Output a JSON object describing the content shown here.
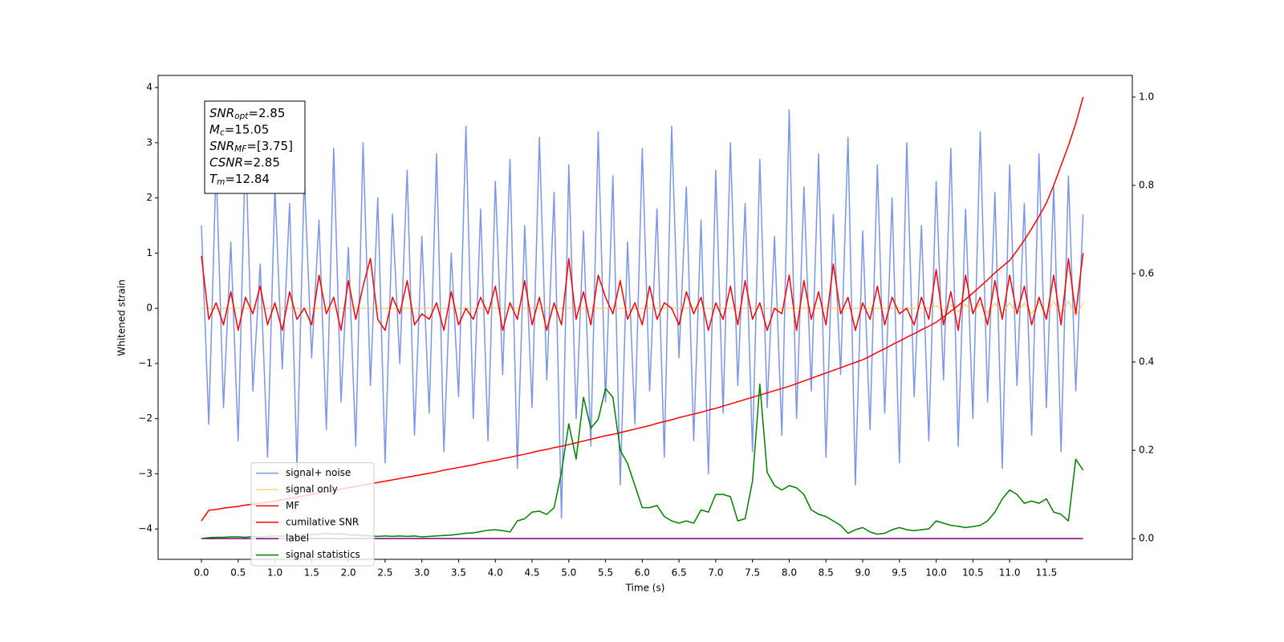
{
  "chart_data": {
    "type": "line",
    "xlabel": "Time (s)",
    "ylabel": "Whitened strain",
    "annotation": [
      {
        "base": "SNR",
        "sub": "opt",
        "rest": "=2.85"
      },
      {
        "base": "M",
        "sub": "c",
        "rest": "=15.05"
      },
      {
        "base": "SNR",
        "sub": "MF",
        "rest": "=[3.75]"
      },
      {
        "base": "CSNR",
        "rest": "=2.85"
      },
      {
        "base": "T",
        "sub": "m",
        "rest": "=12.84"
      }
    ],
    "xlim": [
      -0.59,
      12.67
    ],
    "ylim": [
      -4.55,
      4.22
    ],
    "y2lim": [
      -0.047,
      1.049
    ],
    "xticks": [
      {
        "value": 0,
        "label": "0.0"
      },
      0.5,
      {
        "value": 1,
        "label": "1.0"
      },
      1.5,
      {
        "value": 2,
        "label": "2.0"
      },
      2.5,
      {
        "value": 3,
        "label": "3.0"
      },
      3.5,
      {
        "value": 4,
        "label": "4.0"
      },
      4.5,
      {
        "value": 5,
        "label": "5.0"
      },
      5.5,
      {
        "value": 6,
        "label": "6.0"
      },
      6.5,
      {
        "value": 7,
        "label": "7.0"
      },
      7.5,
      {
        "value": 8,
        "label": "8.0"
      },
      8.5,
      {
        "value": 9,
        "label": "9.0"
      },
      9.5,
      {
        "value": 10,
        "label": "10.0"
      },
      10.5,
      {
        "value": 11,
        "label": "11.0"
      },
      11.5
    ],
    "yticks": [
      {
        "value": -4,
        "label": "−4"
      },
      {
        "value": -3,
        "label": "−3"
      },
      {
        "value": -2,
        "label": "−2"
      },
      {
        "value": -1,
        "label": "−1"
      },
      0,
      1,
      2,
      3,
      4
    ],
    "y2ticks": [
      {
        "value": 0,
        "label": "0.0"
      },
      0.2,
      0.4,
      0.6,
      0.8,
      {
        "value": 1,
        "label": "1.0"
      }
    ],
    "legend": "lower left",
    "x": [
      0.0,
      0.1,
      0.2,
      0.3,
      0.4,
      0.5,
      0.6,
      0.7,
      0.8,
      0.9,
      1.0,
      1.1,
      1.2,
      1.3,
      1.4,
      1.5,
      1.6,
      1.7,
      1.8,
      1.9,
      2.0,
      2.1,
      2.2,
      2.3,
      2.4,
      2.5,
      2.6,
      2.7,
      2.8,
      2.9,
      3.0,
      3.1,
      3.2,
      3.3,
      3.4,
      3.5,
      3.6,
      3.7,
      3.8,
      3.9,
      4.0,
      4.1,
      4.2,
      4.3,
      4.4,
      4.5,
      4.6,
      4.7,
      4.8,
      4.9,
      5.0,
      5.1,
      5.2,
      5.3,
      5.4,
      5.5,
      5.6,
      5.7,
      5.8,
      5.9,
      6.0,
      6.1,
      6.2,
      6.3,
      6.4,
      6.5,
      6.6,
      6.7,
      6.8,
      6.9,
      7.0,
      7.1,
      7.2,
      7.3,
      7.4,
      7.5,
      7.6,
      7.7,
      7.8,
      7.9,
      8.0,
      8.1,
      8.2,
      8.3,
      8.4,
      8.5,
      8.6,
      8.7,
      8.8,
      8.9,
      9.0,
      9.1,
      9.2,
      9.3,
      9.4,
      9.5,
      9.6,
      9.7,
      9.8,
      9.9,
      10.0,
      10.1,
      10.2,
      10.3,
      10.4,
      10.5,
      10.6,
      10.7,
      10.8,
      10.9,
      11.0,
      11.1,
      11.2,
      11.3,
      11.4,
      11.5,
      11.6,
      11.7,
      11.8,
      11.9,
      12.0
    ],
    "series": [
      {
        "name": "signal+ noise",
        "color": "#6d8ae6",
        "opacity": 0.9,
        "values": [
          1.5,
          -2.1,
          2.6,
          -1.8,
          1.2,
          -2.4,
          3.0,
          -1.5,
          0.8,
          -2.7,
          2.2,
          -1.1,
          1.9,
          -2.9,
          2.4,
          -0.9,
          1.6,
          -2.2,
          2.9,
          -1.7,
          1.1,
          -2.5,
          3.0,
          -1.4,
          2.0,
          -2.8,
          1.7,
          -1.0,
          2.5,
          -2.3,
          1.3,
          -1.9,
          2.8,
          -2.6,
          1.0,
          -1.6,
          3.3,
          -2.0,
          1.8,
          -2.4,
          2.3,
          -1.2,
          2.7,
          -2.9,
          1.5,
          -1.8,
          3.1,
          -1.3,
          2.1,
          -3.8,
          2.6,
          -2.0,
          1.4,
          -2.5,
          3.2,
          -1.7,
          2.4,
          -3.2,
          1.2,
          -2.1,
          2.9,
          -1.5,
          1.8,
          -2.7,
          3.3,
          -0.9,
          2.2,
          -2.4,
          1.6,
          -3.0,
          2.5,
          -1.9,
          3.0,
          -1.4,
          1.9,
          -2.6,
          2.7,
          -1.8,
          1.3,
          -2.3,
          3.6,
          -2.0,
          2.2,
          -1.5,
          2.8,
          -2.7,
          1.7,
          -1.2,
          3.1,
          -3.2,
          1.4,
          -2.2,
          2.6,
          -1.9,
          2.0,
          -2.8,
          3.0,
          -1.6,
          1.5,
          -2.4,
          2.3,
          -1.3,
          2.9,
          -2.5,
          1.8,
          -2.0,
          3.2,
          -1.7,
          2.1,
          -2.9,
          2.6,
          -1.4,
          1.9,
          -2.3,
          2.8,
          -1.8,
          2.2,
          -2.6,
          2.4,
          -1.5,
          1.7
        ]
      },
      {
        "name": "signal only",
        "color": "#ffbe55",
        "opacity": 0.7,
        "values": [
          0,
          0,
          0,
          0,
          0,
          0,
          0,
          0,
          0,
          0,
          0,
          0,
          0,
          0,
          0,
          0,
          0,
          0,
          0,
          0,
          0,
          0,
          0,
          0,
          0,
          0,
          0,
          0,
          0,
          0,
          0,
          0,
          0,
          0,
          0,
          0,
          0,
          0,
          0,
          0,
          0,
          0,
          0,
          0,
          0,
          0,
          0,
          0,
          0,
          0,
          0,
          0,
          0,
          0,
          0,
          0,
          0,
          0,
          0,
          0,
          0,
          0,
          0,
          0,
          0,
          0,
          0,
          0,
          0,
          0,
          0,
          0,
          0,
          0,
          0,
          0,
          0,
          0,
          0,
          0,
          0,
          0,
          0,
          0,
          0,
          0,
          0,
          0,
          0,
          0,
          0,
          0,
          0,
          0,
          0,
          0,
          0,
          0,
          0,
          0,
          0.05,
          -0.05,
          0.06,
          -0.06,
          0.07,
          -0.07,
          0.08,
          -0.08,
          0.09,
          -0.09,
          0.1,
          -0.1,
          0.1,
          -0.1,
          0.12,
          -0.12,
          0.12,
          -0.12,
          0.13,
          -0.13,
          0.1
        ]
      },
      {
        "name": "MF",
        "color": "#ff0000",
        "values": [
          0.95,
          -0.2,
          0.1,
          -0.3,
          0.3,
          -0.4,
          0.2,
          -0.1,
          0.4,
          -0.3,
          0.1,
          -0.4,
          0.3,
          -0.2,
          0.0,
          -0.3,
          0.6,
          -0.1,
          0.2,
          -0.4,
          0.5,
          -0.2,
          0.4,
          0.9,
          -0.2,
          -0.4,
          0.2,
          -0.1,
          0.5,
          -0.3,
          -0.1,
          -0.2,
          0.1,
          -0.4,
          0.3,
          -0.3,
          0.0,
          -0.2,
          0.2,
          -0.1,
          0.4,
          -0.4,
          0.1,
          -0.2,
          0.5,
          -0.3,
          0.2,
          -0.4,
          0.1,
          -0.3,
          0.9,
          -0.2,
          0.3,
          -0.3,
          0.6,
          0.2,
          -0.1,
          0.5,
          -0.2,
          0.1,
          -0.3,
          0.4,
          -0.2,
          0.1,
          0.0,
          -0.3,
          0.3,
          -0.1,
          0.2,
          -0.4,
          0.1,
          -0.2,
          0.4,
          -0.3,
          0.5,
          -0.2,
          0.1,
          -0.4,
          0.0,
          -0.1,
          0.6,
          -0.4,
          0.5,
          -0.2,
          0.3,
          -0.3,
          0.8,
          -0.1,
          0.2,
          -0.4,
          0.1,
          -0.2,
          0.4,
          -0.3,
          0.2,
          -0.1,
          0.0,
          -0.3,
          0.2,
          -0.2,
          0.7,
          -0.3,
          0.3,
          -0.4,
          0.6,
          -0.1,
          0.2,
          -0.3,
          0.5,
          -0.2,
          0.6,
          -0.1,
          0.4,
          -0.3,
          0.2,
          -0.2,
          0.6,
          -0.3,
          0.9,
          -0.1,
          1.0
        ]
      },
      {
        "name": "cumilative SNR",
        "color": "#ff0000",
        "axis": "y2",
        "values": [
          0.04,
          0.064,
          0.066,
          0.069,
          0.071,
          0.073,
          0.076,
          0.078,
          0.08,
          0.083,
          0.085,
          0.088,
          0.091,
          0.094,
          0.097,
          0.1,
          0.103,
          0.106,
          0.109,
          0.112,
          0.115,
          0.118,
          0.121,
          0.124,
          0.127,
          0.13,
          0.133,
          0.136,
          0.139,
          0.142,
          0.145,
          0.148,
          0.151,
          0.155,
          0.158,
          0.161,
          0.164,
          0.167,
          0.171,
          0.174,
          0.177,
          0.181,
          0.184,
          0.188,
          0.191,
          0.195,
          0.199,
          0.202,
          0.206,
          0.209,
          0.213,
          0.217,
          0.221,
          0.225,
          0.229,
          0.233,
          0.236,
          0.24,
          0.244,
          0.248,
          0.252,
          0.256,
          0.261,
          0.265,
          0.269,
          0.274,
          0.278,
          0.282,
          0.286,
          0.291,
          0.295,
          0.3,
          0.305,
          0.31,
          0.315,
          0.32,
          0.325,
          0.33,
          0.335,
          0.34,
          0.345,
          0.351,
          0.357,
          0.363,
          0.369,
          0.375,
          0.381,
          0.387,
          0.393,
          0.399,
          0.405,
          0.413,
          0.422,
          0.43,
          0.439,
          0.447,
          0.456,
          0.464,
          0.473,
          0.481,
          0.49,
          0.502,
          0.515,
          0.528,
          0.542,
          0.556,
          0.571,
          0.586,
          0.602,
          0.616,
          0.63,
          0.652,
          0.676,
          0.702,
          0.73,
          0.76,
          0.8,
          0.845,
          0.89,
          0.94,
          1.0
        ]
      },
      {
        "name": "label",
        "color": "#800080",
        "axis": "y2",
        "values": [
          0,
          0,
          0,
          0,
          0,
          0,
          0,
          0,
          0,
          0,
          0,
          0,
          0,
          0,
          0,
          0,
          0,
          0,
          0,
          0,
          0,
          0,
          0,
          0,
          0,
          0,
          0,
          0,
          0,
          0,
          0,
          0,
          0,
          0,
          0,
          0,
          0,
          0,
          0,
          0,
          0,
          0,
          0,
          0,
          0,
          0,
          0,
          0,
          0,
          0,
          0,
          0,
          0,
          0,
          0,
          0,
          0,
          0,
          0,
          0,
          0,
          0,
          0,
          0,
          0,
          0,
          0,
          0,
          0,
          0,
          0,
          0,
          0,
          0,
          0,
          0,
          0,
          0,
          0,
          0,
          0,
          0,
          0,
          0,
          0,
          0,
          0,
          0,
          0,
          0,
          0,
          0,
          0,
          0,
          0,
          0,
          0,
          0,
          0,
          0,
          0,
          0,
          0,
          0,
          0,
          0,
          0,
          0,
          0,
          0,
          0,
          0,
          0,
          0,
          0,
          0,
          0,
          0,
          0,
          0,
          0
        ]
      },
      {
        "name": "signal statistics",
        "color": "#008000",
        "axis": "y2",
        "values": [
          0.0,
          0.002,
          0.003,
          0.003,
          0.004,
          0.004,
          0.003,
          0.005,
          0.004,
          0.005,
          0.006,
          0.005,
          0.007,
          0.006,
          0.008,
          0.009,
          0.01,
          0.012,
          0.01,
          0.011,
          0.009,
          0.008,
          0.007,
          0.006,
          0.005,
          0.006,
          0.005,
          0.006,
          0.005,
          0.006,
          0.004,
          0.005,
          0.006,
          0.007,
          0.008,
          0.01,
          0.012,
          0.013,
          0.016,
          0.019,
          0.02,
          0.018,
          0.015,
          0.04,
          0.045,
          0.06,
          0.062,
          0.055,
          0.07,
          0.15,
          0.26,
          0.18,
          0.32,
          0.25,
          0.27,
          0.34,
          0.32,
          0.2,
          0.17,
          0.12,
          0.07,
          0.07,
          0.075,
          0.05,
          0.04,
          0.035,
          0.04,
          0.035,
          0.065,
          0.06,
          0.1,
          0.1,
          0.095,
          0.04,
          0.045,
          0.13,
          0.35,
          0.15,
          0.12,
          0.11,
          0.12,
          0.115,
          0.1,
          0.065,
          0.055,
          0.05,
          0.04,
          0.03,
          0.012,
          0.02,
          0.025,
          0.015,
          0.01,
          0.012,
          0.02,
          0.025,
          0.02,
          0.018,
          0.02,
          0.022,
          0.04,
          0.035,
          0.03,
          0.028,
          0.025,
          0.027,
          0.03,
          0.04,
          0.06,
          0.09,
          0.11,
          0.1,
          0.08,
          0.085,
          0.08,
          0.09,
          0.06,
          0.055,
          0.04,
          0.18,
          0.155
        ]
      }
    ]
  }
}
